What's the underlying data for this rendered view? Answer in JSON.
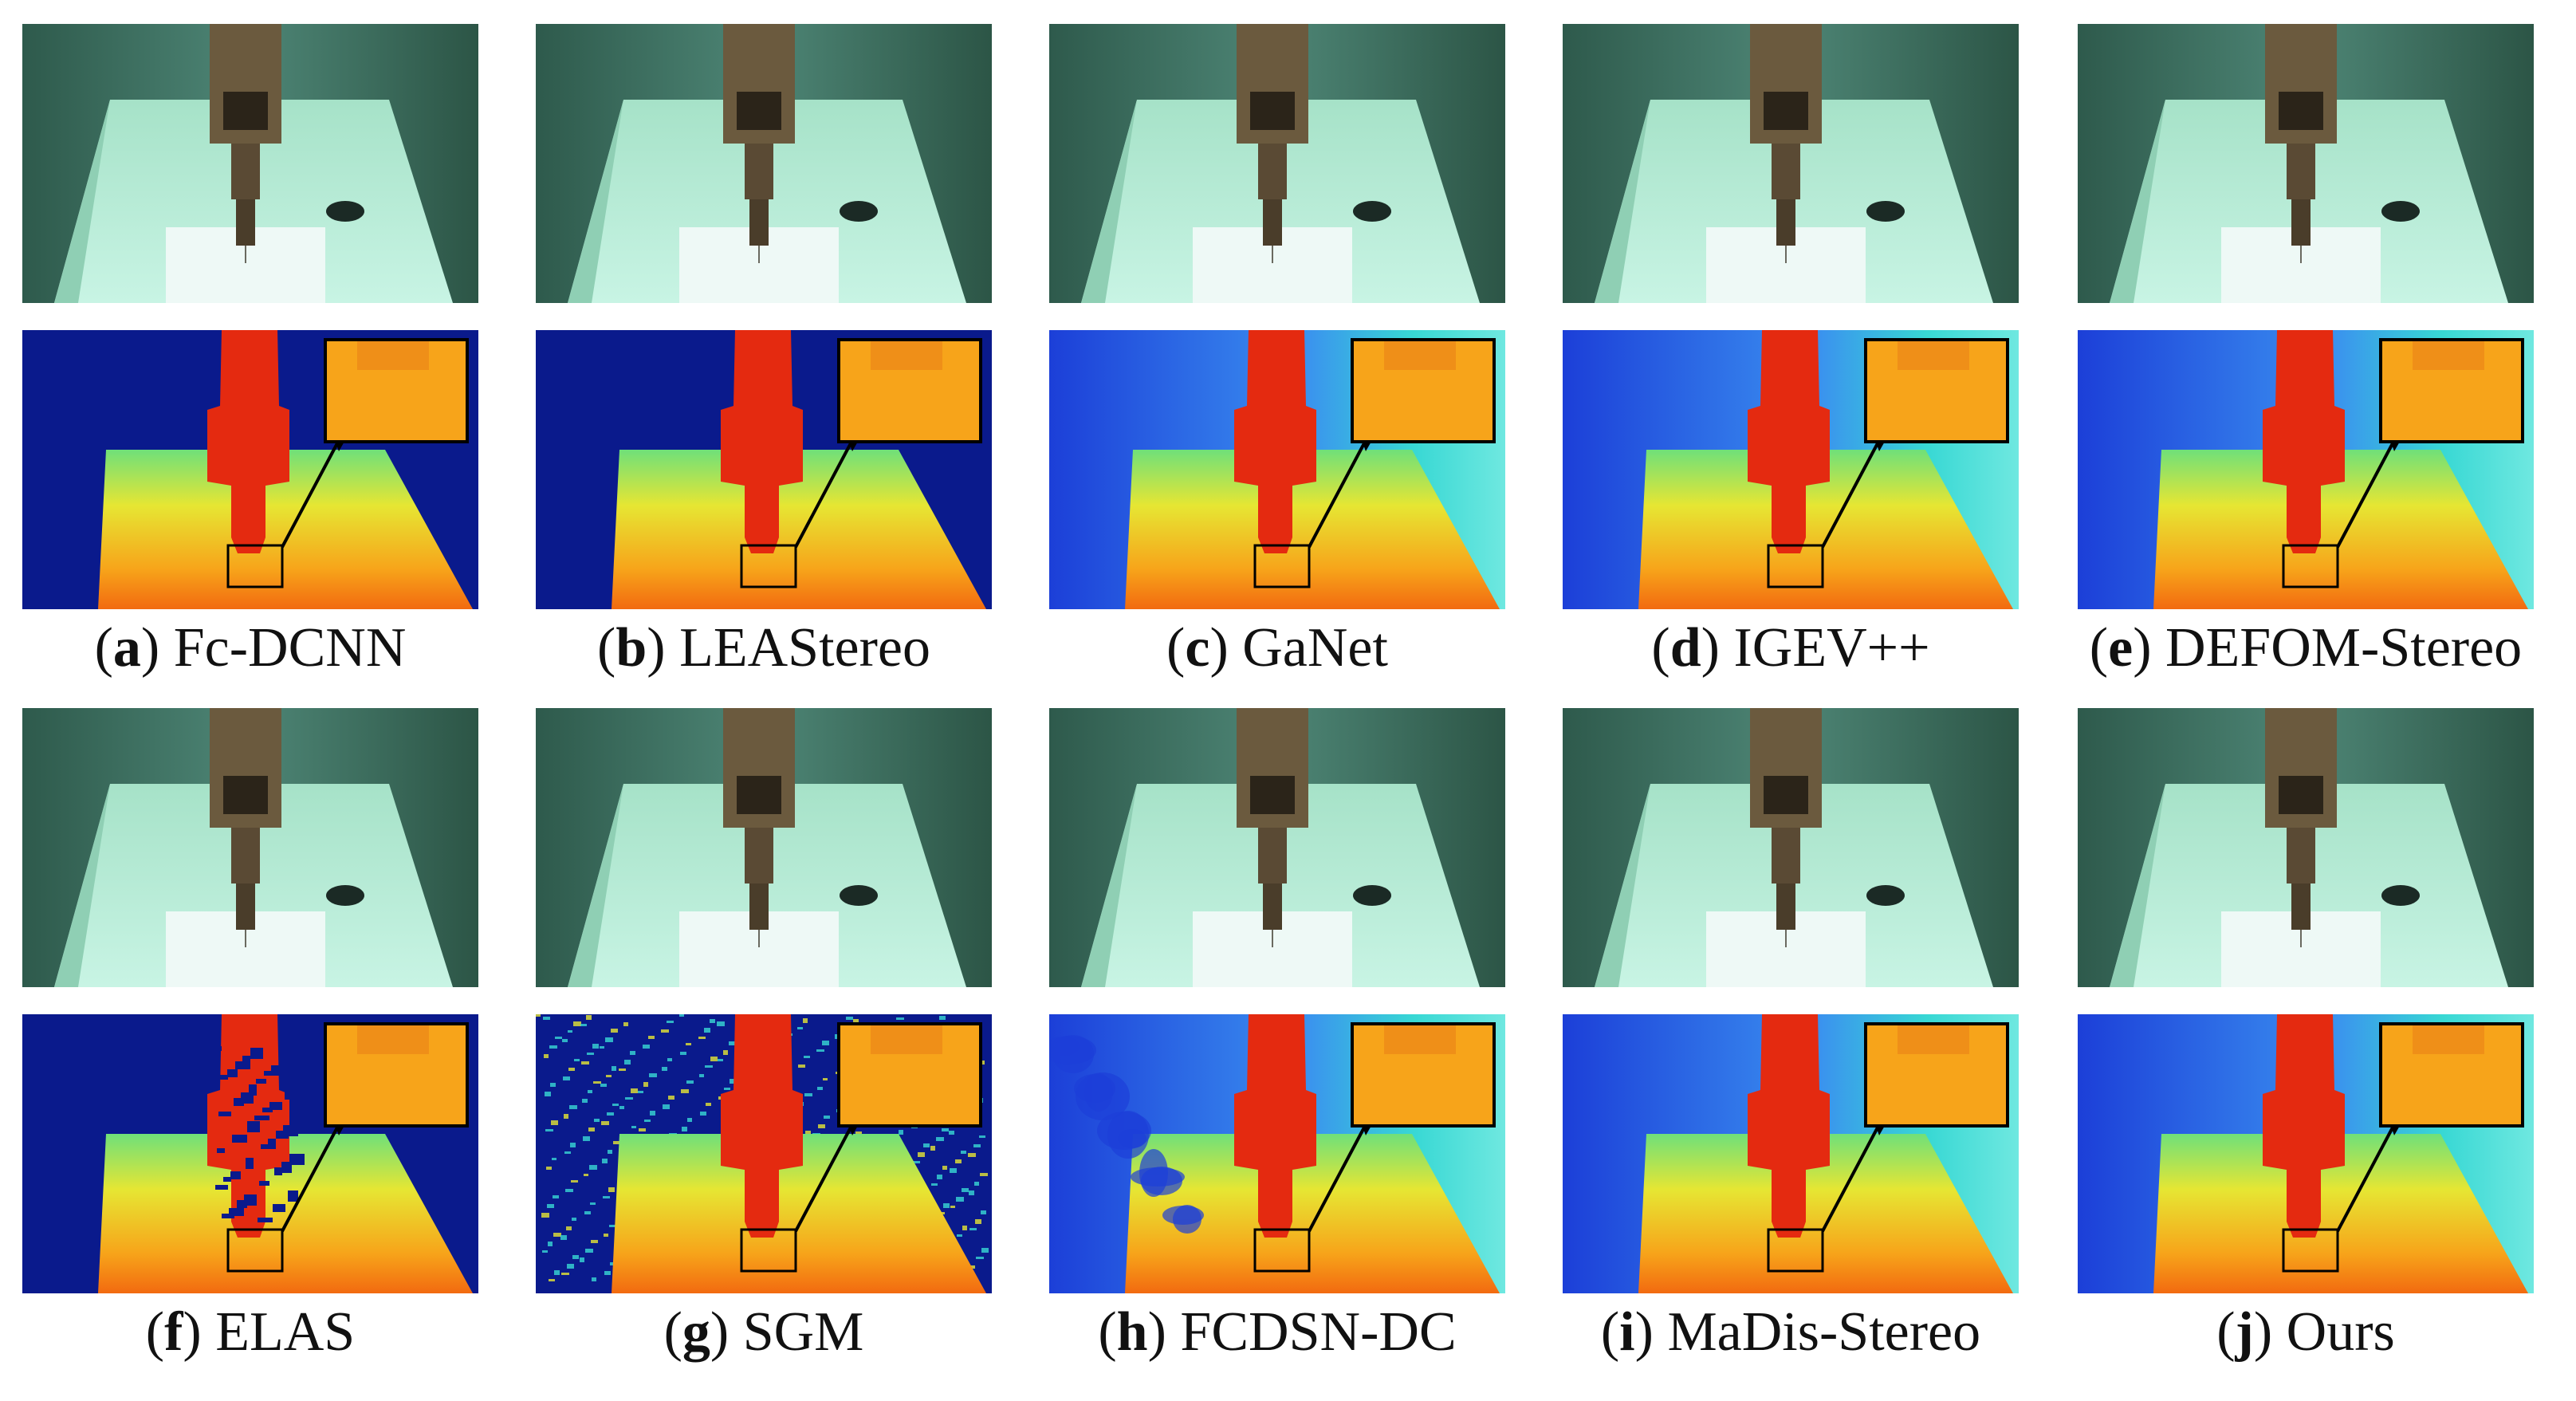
{
  "figure": {
    "panels": [
      {
        "letter": "a",
        "method": "Fc-DCNN",
        "open": "(",
        "close": ")",
        "style": "dense-blue"
      },
      {
        "letter": "b",
        "method": "LEAStereo",
        "open": "(",
        "close": ")",
        "style": "dense-blue"
      },
      {
        "letter": "c",
        "method": "GaNet",
        "open": "(",
        "close": ")",
        "style": "gradient"
      },
      {
        "letter": "d",
        "method": "IGEV++",
        "open": "(",
        "close": ")",
        "style": "gradient"
      },
      {
        "letter": "e",
        "method": "DEFOM-Stereo",
        "open": "(",
        "close": ")",
        "style": "gradient"
      },
      {
        "letter": "f",
        "method": "ELAS",
        "open": "(",
        "close": ")",
        "style": "sparse"
      },
      {
        "letter": "g",
        "method": "SGM",
        "open": "(",
        "close": ")",
        "style": "noisy"
      },
      {
        "letter": "h",
        "method": "FCDSN-DC",
        "open": "(",
        "close": ")",
        "style": "gradient-blotchy"
      },
      {
        "letter": "i",
        "method": "MaDis-Stereo",
        "open": "(",
        "close": ")",
        "style": "gradient"
      },
      {
        "letter": "j",
        "method": "Ours",
        "open": "(",
        "close": ")",
        "style": "gradient"
      }
    ]
  },
  "colors": {
    "dark_blue": "#0a1a8c",
    "red": "#e82a10",
    "orange": "#f7a41a",
    "yellow": "#f5e52a",
    "cyan": "#38d8d4",
    "light_blue": "#3a8ef0",
    "wall": "#3f6e5f",
    "table": "#b7ecd6"
  }
}
